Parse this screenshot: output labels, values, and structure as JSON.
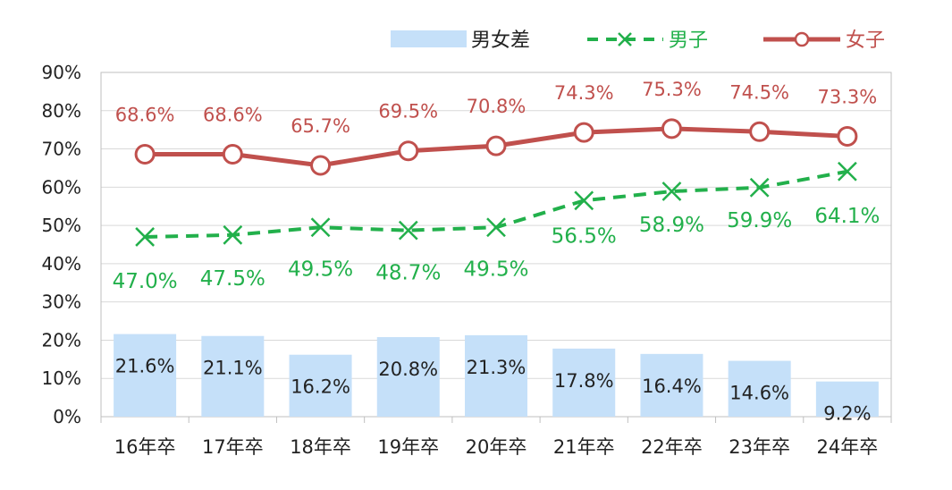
{
  "chart_data": {
    "type": "bar+line",
    "categories": [
      "16年卒",
      "17年卒",
      "18年卒",
      "19年卒",
      "20年卒",
      "21年卒",
      "22年卒",
      "23年卒",
      "24年卒"
    ],
    "ylim": [
      0,
      90
    ],
    "yticks": [
      "0%",
      "10%",
      "20%",
      "30%",
      "40%",
      "50%",
      "60%",
      "70%",
      "80%",
      "90%"
    ],
    "grid": true,
    "legend": "top",
    "series": [
      {
        "name": "男女差",
        "kind": "bar",
        "color": "#c5e0f9",
        "values": [
          21.6,
          21.1,
          16.2,
          20.8,
          21.3,
          17.8,
          16.4,
          14.6,
          9.2
        ],
        "labels": [
          "21.6%",
          "21.1%",
          "16.2%",
          "20.8%",
          "21.3%",
          "17.8%",
          "16.4%",
          "14.6%",
          "9.2%"
        ]
      },
      {
        "name": "男子",
        "kind": "line-dashed-x",
        "color": "#22b04b",
        "values": [
          47.0,
          47.5,
          49.5,
          48.7,
          49.5,
          56.5,
          58.9,
          59.9,
          64.1
        ],
        "labels": [
          "47.0%",
          "47.5%",
          "49.5%",
          "48.7%",
          "49.5%",
          "56.5%",
          "58.9%",
          "59.9%",
          "64.1%"
        ]
      },
      {
        "name": "女子",
        "kind": "line-circle",
        "color": "#c0504d",
        "values": [
          68.6,
          68.6,
          65.7,
          69.5,
          70.8,
          74.3,
          75.3,
          74.5,
          73.3
        ],
        "labels": [
          "68.6%",
          "68.6%",
          "65.7%",
          "69.5%",
          "70.8%",
          "74.3%",
          "75.3%",
          "74.5%",
          "73.3%"
        ]
      }
    ]
  }
}
